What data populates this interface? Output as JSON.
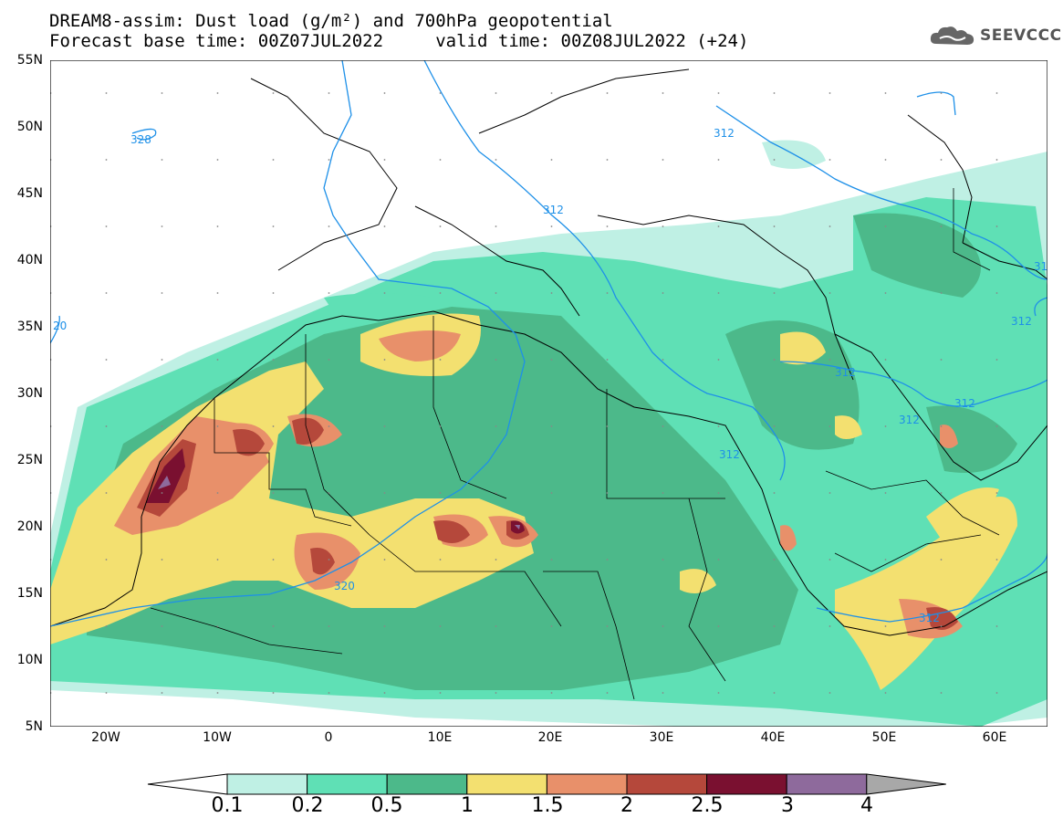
{
  "header": {
    "title_line1": "DREAM8-assim: Dust load (g/m²) and 700hPa geopotential",
    "title_line2": "Forecast base time: 00Z07JUL2022     valid time: 00Z08JUL2022 (+24)"
  },
  "logo": {
    "text": "SEEVCCC",
    "icon": "cloud-logo-icon"
  },
  "axes": {
    "lat_labels": [
      "55N",
      "50N",
      "45N",
      "40N",
      "35N",
      "30N",
      "25N",
      "20N",
      "15N",
      "10N",
      "5N"
    ],
    "lon_labels": [
      "20W",
      "10W",
      "0",
      "10E",
      "20E",
      "30E",
      "40E",
      "50E",
      "60E"
    ]
  },
  "contours": {
    "color": "#1e90e8",
    "labels": [
      "328",
      "312",
      "312",
      "312",
      "312",
      "312",
      "312",
      "312",
      "320",
      "20",
      "31"
    ]
  },
  "colorbar": {
    "levels": [
      "0.1",
      "0.2",
      "0.5",
      "1",
      "1.5",
      "2",
      "2.5",
      "3",
      "4"
    ],
    "colors": [
      "#ffffff",
      "#bff0e4",
      "#5fe0b5",
      "#4cb98a",
      "#f3e070",
      "#e8906a",
      "#b5483b",
      "#7a1030",
      "#8e6a9c",
      "#a8a8a8"
    ]
  }
}
